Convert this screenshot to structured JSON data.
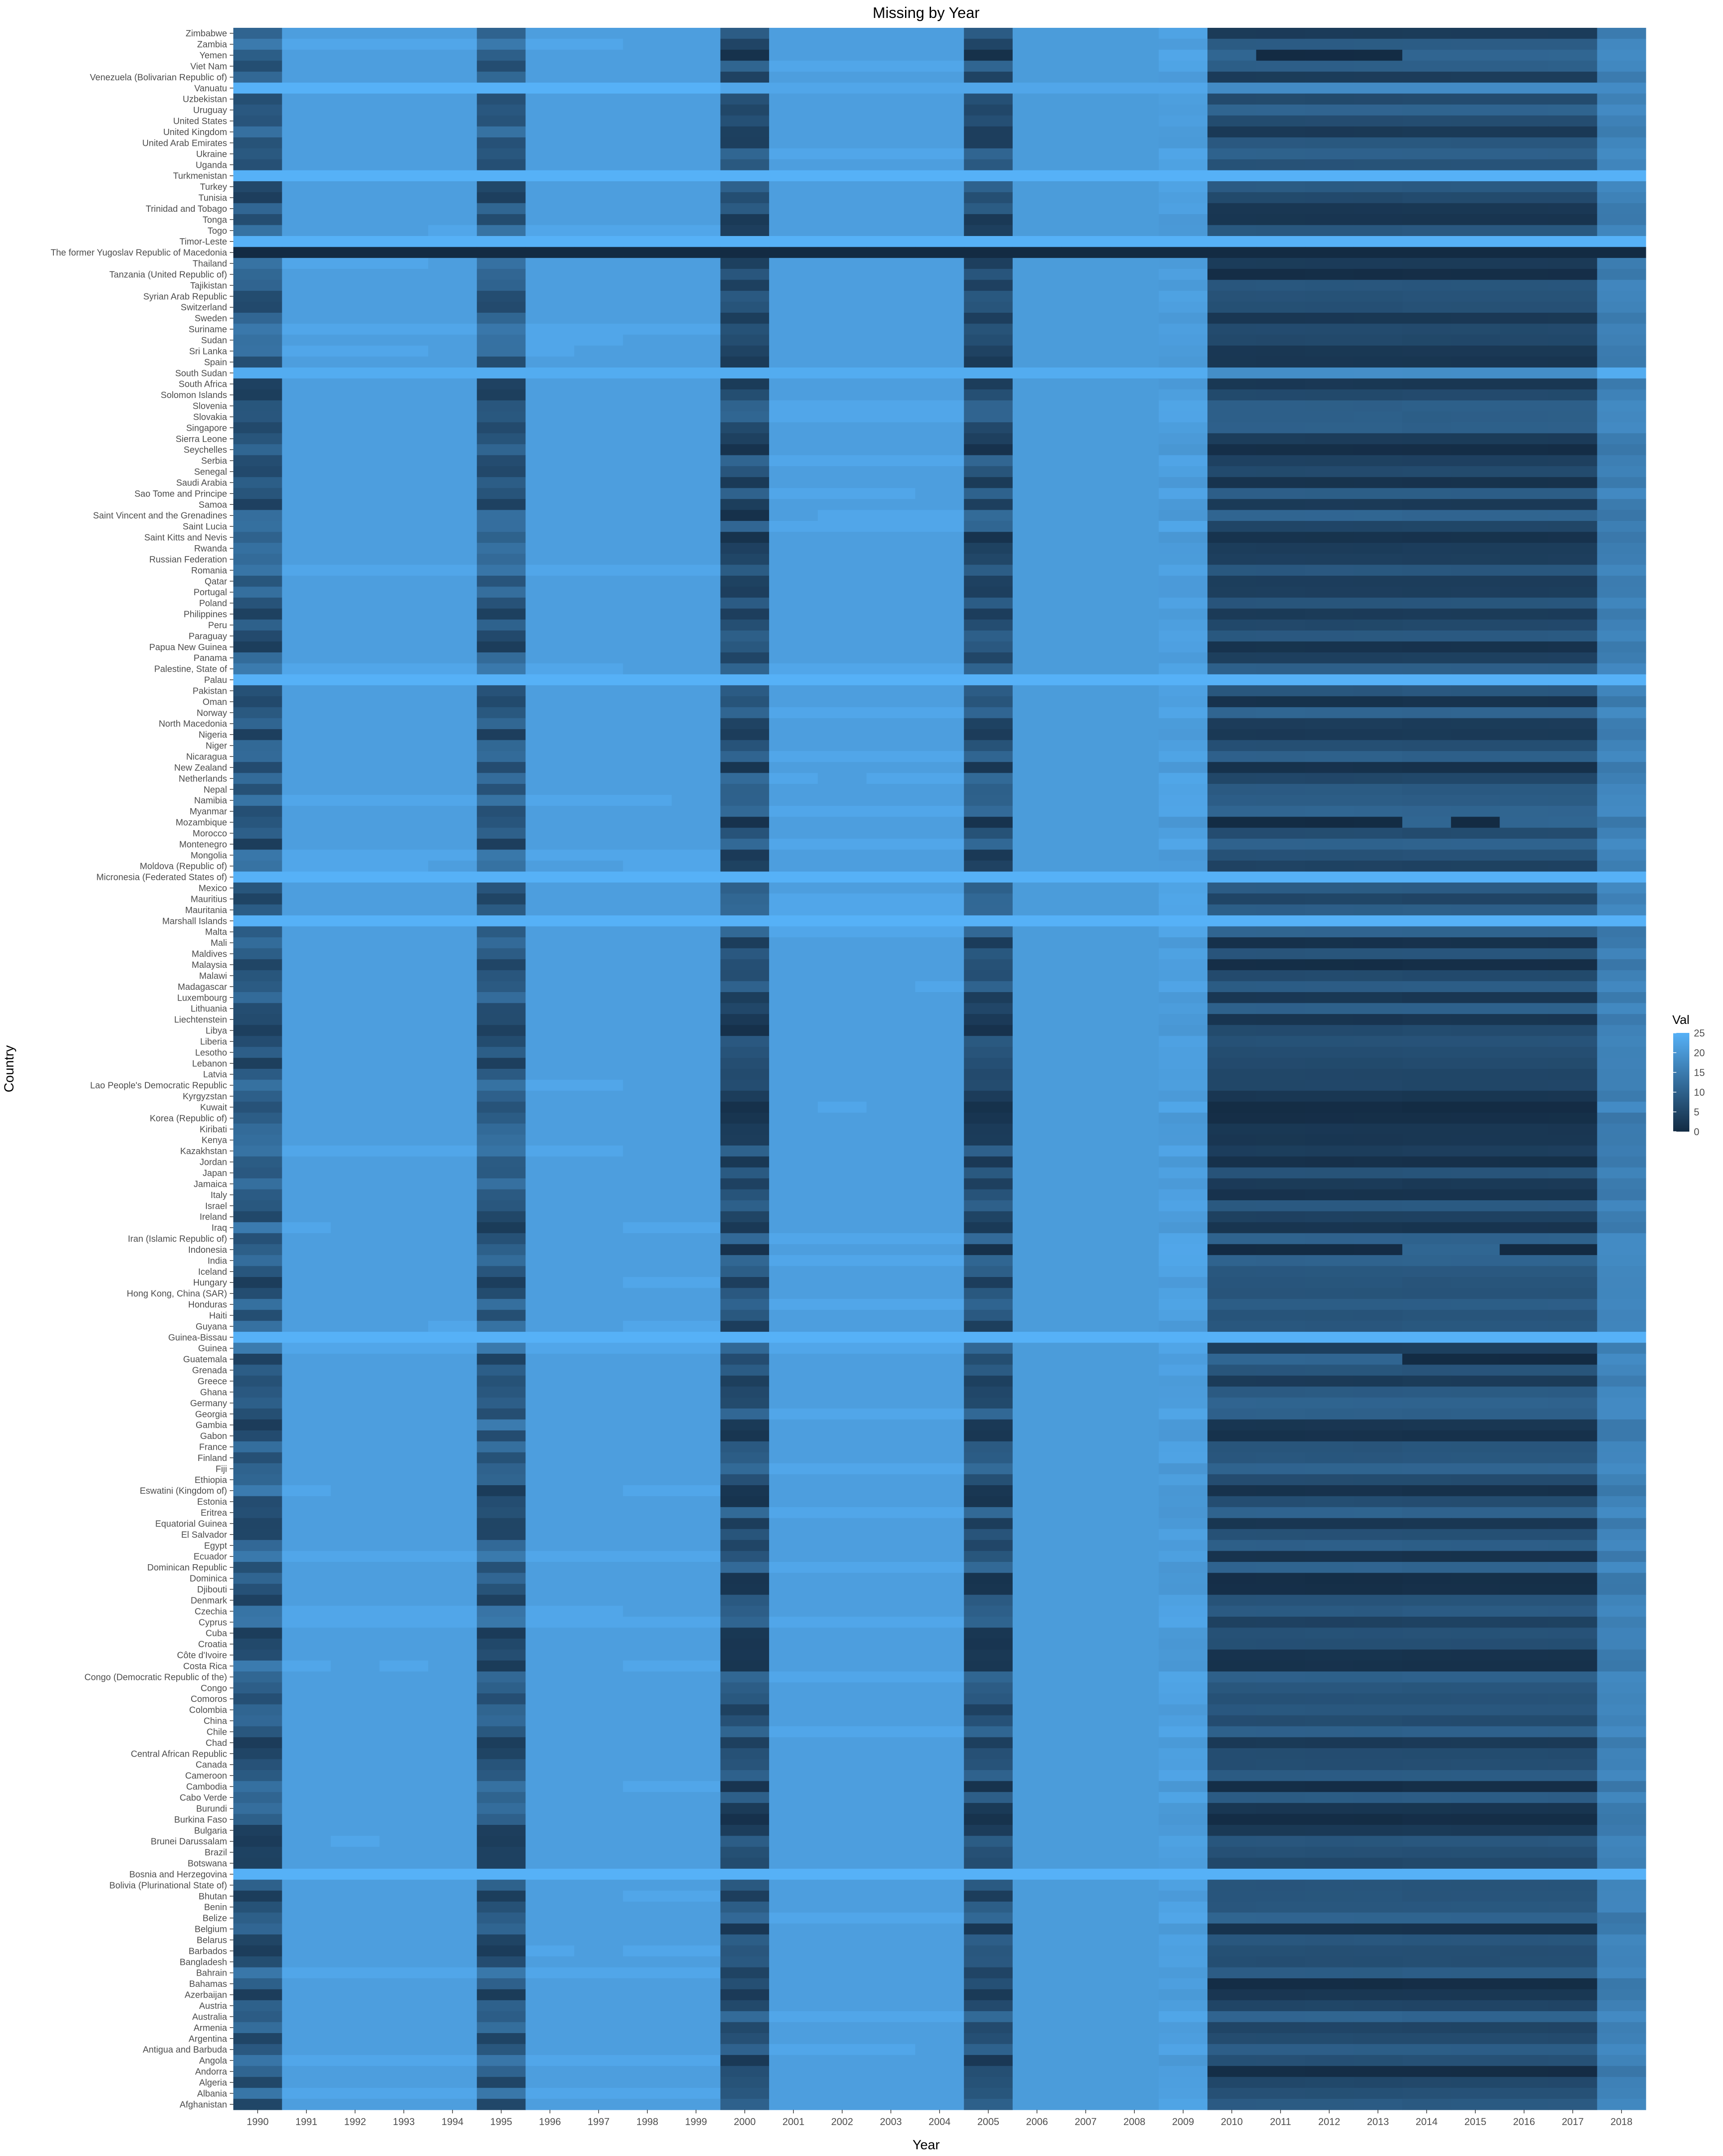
{
  "chart_data": {
    "type": "heatmap",
    "title": "Missing by Year",
    "xlabel": "Year",
    "ylabel": "Country",
    "x": [
      "1990",
      "1991",
      "1992",
      "1993",
      "1994",
      "1995",
      "1996",
      "1997",
      "1998",
      "1999",
      "2000",
      "2001",
      "2002",
      "2003",
      "2004",
      "2005",
      "2006",
      "2007",
      "2008",
      "2009",
      "2010",
      "2011",
      "2012",
      "2013",
      "2014",
      "2015",
      "2016",
      "2017",
      "2018"
    ],
    "y": [
      "Zimbabwe",
      "Zambia",
      "Yemen",
      "Viet Nam",
      "Venezuela (Bolivarian Republic of)",
      "Vanuatu",
      "Uzbekistan",
      "Uruguay",
      "United States",
      "United Kingdom",
      "United Arab Emirates",
      "Ukraine",
      "Uganda",
      "Turkmenistan",
      "Turkey",
      "Tunisia",
      "Trinidad and Tobago",
      "Tonga",
      "Togo",
      "Timor-Leste",
      "The former Yugoslav Republic of Macedonia",
      "Thailand",
      "Tanzania (United Republic of)",
      "Tajikistan",
      "Syrian Arab Republic",
      "Switzerland",
      "Sweden",
      "Suriname",
      "Sudan",
      "Sri Lanka",
      "Spain",
      "South Sudan",
      "South Africa",
      "Solomon Islands",
      "Slovenia",
      "Slovakia",
      "Singapore",
      "Sierra Leone",
      "Seychelles",
      "Serbia",
      "Senegal",
      "Saudi Arabia",
      "Sao Tome and Principe",
      "Samoa",
      "Saint Vincent and the Grenadines",
      "Saint Lucia",
      "Saint Kitts and Nevis",
      "Rwanda",
      "Russian Federation",
      "Romania",
      "Qatar",
      "Portugal",
      "Poland",
      "Philippines",
      "Peru",
      "Paraguay",
      "Papua New Guinea",
      "Panama",
      "Palestine, State of",
      "Palau",
      "Pakistan",
      "Oman",
      "Norway",
      "North Macedonia",
      "Nigeria",
      "Niger",
      "Nicaragua",
      "New Zealand",
      "Netherlands",
      "Nepal",
      "Namibia",
      "Myanmar",
      "Mozambique",
      "Morocco",
      "Montenegro",
      "Mongolia",
      "Moldova (Republic of)",
      "Micronesia (Federated States of)",
      "Mexico",
      "Mauritius",
      "Mauritania",
      "Marshall Islands",
      "Malta",
      "Mali",
      "Maldives",
      "Malaysia",
      "Malawi",
      "Madagascar",
      "Luxembourg",
      "Lithuania",
      "Liechtenstein",
      "Libya",
      "Liberia",
      "Lesotho",
      "Lebanon",
      "Latvia",
      "Lao People's Democratic Republic",
      "Kyrgyzstan",
      "Kuwait",
      "Korea (Republic of)",
      "Kiribati",
      "Kenya",
      "Kazakhstan",
      "Jordan",
      "Japan",
      "Jamaica",
      "Italy",
      "Israel",
      "Ireland",
      "Iraq",
      "Iran (Islamic Republic of)",
      "Indonesia",
      "India",
      "Iceland",
      "Hungary",
      "Hong Kong, China (SAR)",
      "Honduras",
      "Haiti",
      "Guyana",
      "Guinea-Bissau",
      "Guinea",
      "Guatemala",
      "Grenada",
      "Greece",
      "Ghana",
      "Germany",
      "Georgia",
      "Gambia",
      "Gabon",
      "France",
      "Finland",
      "Fiji",
      "Ethiopia",
      "Eswatini (Kingdom of)",
      "Estonia",
      "Eritrea",
      "Equatorial Guinea",
      "El Salvador",
      "Egypt",
      "Ecuador",
      "Dominican Republic",
      "Dominica",
      "Djibouti",
      "Denmark",
      "Czechia",
      "Cyprus",
      "Cuba",
      "Croatia",
      "Côte d'Ivoire",
      "Costa Rica",
      "Congo (Democratic Republic of the)",
      "Congo",
      "Comoros",
      "Colombia",
      "China",
      "Chile",
      "Chad",
      "Central African Republic",
      "Canada",
      "Cameroon",
      "Cambodia",
      "Cabo Verde",
      "Burundi",
      "Burkina Faso",
      "Bulgaria",
      "Brunei Darussalam",
      "Brazil",
      "Botswana",
      "Bosnia and Herzegovina",
      "Bolivia (Plurinational State of)",
      "Bhutan",
      "Benin",
      "Belize",
      "Belgium",
      "Belarus",
      "Barbados",
      "Bangladesh",
      "Bahrain",
      "Bahamas",
      "Azerbaijan",
      "Austria",
      "Australia",
      "Armenia",
      "Argentina",
      "Antigua and Barbuda",
      "Angola",
      "Andorra",
      "Algeria",
      "Albania",
      "Afghanistan"
    ],
    "zlim": [
      0,
      25
    ],
    "color_low": "#132B43",
    "color_high": "#56B1F7",
    "legend": {
      "title": "Val",
      "ticks": [
        0,
        5,
        10,
        15,
        20,
        25
      ],
      "position": "right"
    },
    "grid": false,
    "structure_note": "",
    "full_years": [
      0,
      5,
      10,
      15
    ],
    "typical_values": {
      "1990": 8,
      "1991_1994": 22,
      "1995": 8,
      "1996_1999": 22,
      "2000": 6,
      "2001_2004": 21,
      "2005": 6,
      "2006_2008": 21,
      "2009": 20,
      "2010_2017": 5,
      "2018": 15
    },
    "overrides": {
      "The former Yugoslav Republic of Macedonia": "all 0",
      "Palau": "all 25",
      "Turkmenistan": "all 25",
      "Vanuatu": "1990-1999 25, 2010-2018 18",
      "South Sudan": "all 24, 2010-2017 18",
      "Micronesia (Federated States of)": "all 25",
      "Marshall Islands": "all 25",
      "Guinea-Bissau": "all 25",
      "Bosnia and Herzegovina": "all 25",
      "Timor-Leste": "all 25"
    }
  }
}
